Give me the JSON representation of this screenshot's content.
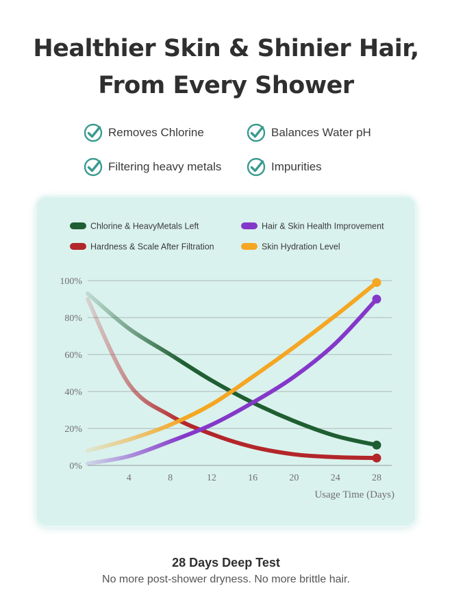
{
  "headline": {
    "line1": "Healthier Skin & Shinier Hair,",
    "line2": "From Every Shower"
  },
  "features": [
    {
      "label": "Removes Chlorine",
      "icon": "check-circle-icon"
    },
    {
      "label": "Balances Water pH",
      "icon": "check-circle-icon"
    },
    {
      "label": "Filtering heavy metals",
      "icon": "check-circle-icon"
    },
    {
      "label": "Impurities",
      "icon": "check-circle-icon"
    }
  ],
  "colors": {
    "check": "#3a9a8f",
    "card": "#daf2ee",
    "grid": "#a9b8b6",
    "axis_text": "#6f6f6f"
  },
  "chart_data": {
    "type": "line",
    "legend_position": "top",
    "grid": true,
    "xlabel": "Usage Time (Days)",
    "ylabel": "",
    "xlim": [
      0,
      28
    ],
    "ylim": [
      0,
      100
    ],
    "x_ticks": [
      4,
      8,
      12,
      16,
      20,
      24,
      28
    ],
    "y_ticks": [
      0,
      20,
      40,
      60,
      80,
      100
    ],
    "y_tick_labels": [
      "0%",
      "20%",
      "40%",
      "60%",
      "80%",
      "100%"
    ],
    "series": [
      {
        "name": "Chlorine & HeavyMetals Left",
        "color": "#1f5e32",
        "x": [
          0,
          4,
          8,
          12,
          16,
          20,
          24,
          28
        ],
        "y": [
          93,
          74,
          60,
          46,
          34,
          24,
          16,
          11
        ]
      },
      {
        "name": "Hair & Skin Health Improvement",
        "color": "#8438c9",
        "x": [
          0,
          4,
          8,
          12,
          16,
          20,
          24,
          28
        ],
        "y": [
          1,
          5,
          13,
          22,
          34,
          48,
          66,
          90
        ]
      },
      {
        "name": "Hardness & Scale After Filtration",
        "color": "#b3262a",
        "x": [
          0,
          4,
          8,
          12,
          16,
          20,
          24,
          28
        ],
        "y": [
          90,
          44,
          27,
          17,
          10,
          6,
          4.5,
          4
        ]
      },
      {
        "name": "Skin Hydration Level",
        "color": "#f5a623",
        "x": [
          0,
          4,
          8,
          12,
          16,
          20,
          24,
          28
        ],
        "y": [
          8,
          14,
          22,
          33,
          48,
          64,
          81,
          99
        ]
      }
    ]
  },
  "bottom": {
    "title": "28 Days Deep Test",
    "subtitle": "No more post-shower dryness. No more brittle hair."
  }
}
